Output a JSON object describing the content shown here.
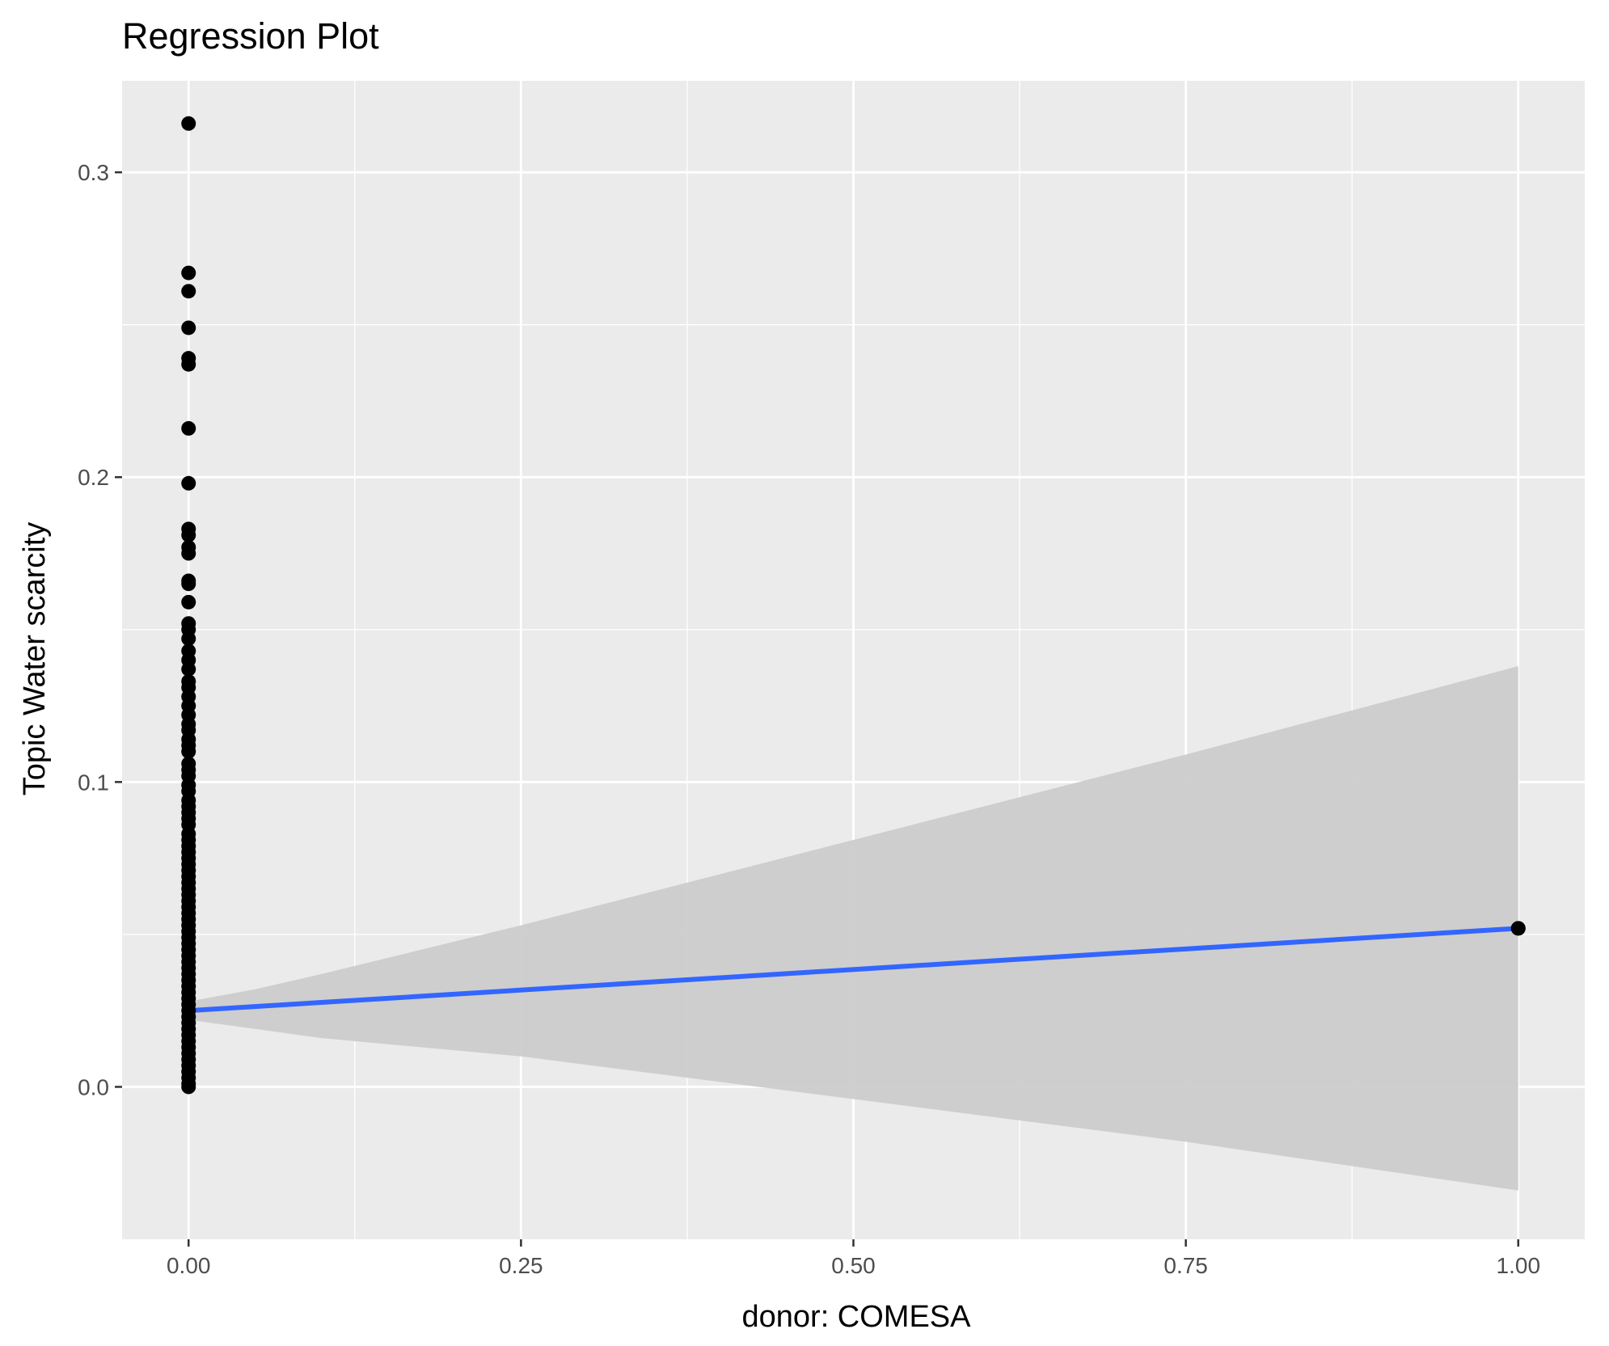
{
  "chart_data": {
    "type": "scatter",
    "title": "Regression Plot",
    "xlabel": "donor: COMESA",
    "ylabel": "Topic Water scarcity",
    "xlim": [
      -0.05,
      1.05
    ],
    "ylim": [
      -0.05,
      0.33
    ],
    "x_ticks": [
      {
        "value": 0.0,
        "label": "0.00"
      },
      {
        "value": 0.25,
        "label": "0.25"
      },
      {
        "value": 0.5,
        "label": "0.50"
      },
      {
        "value": 0.75,
        "label": "0.75"
      },
      {
        "value": 1.0,
        "label": "1.00"
      }
    ],
    "y_ticks": [
      {
        "value": 0.0,
        "label": "0.0"
      },
      {
        "value": 0.1,
        "label": "0.1"
      },
      {
        "value": 0.2,
        "label": "0.2"
      },
      {
        "value": 0.3,
        "label": "0.3"
      }
    ],
    "grid": true,
    "legend": "none",
    "points": [
      {
        "x": 0,
        "y": 0.316
      },
      {
        "x": 0,
        "y": 0.267
      },
      {
        "x": 0,
        "y": 0.261
      },
      {
        "x": 0,
        "y": 0.249
      },
      {
        "x": 0,
        "y": 0.239
      },
      {
        "x": 0,
        "y": 0.237
      },
      {
        "x": 0,
        "y": 0.216
      },
      {
        "x": 0,
        "y": 0.198
      },
      {
        "x": 0,
        "y": 0.183
      },
      {
        "x": 0,
        "y": 0.181
      },
      {
        "x": 0,
        "y": 0.177
      },
      {
        "x": 0,
        "y": 0.175
      },
      {
        "x": 0,
        "y": 0.166
      },
      {
        "x": 0,
        "y": 0.165
      },
      {
        "x": 0,
        "y": 0.159
      },
      {
        "x": 0,
        "y": 0.152
      },
      {
        "x": 0,
        "y": 0.15
      },
      {
        "x": 0,
        "y": 0.147
      },
      {
        "x": 0,
        "y": 0.143
      },
      {
        "x": 0,
        "y": 0.14
      },
      {
        "x": 0,
        "y": 0.137
      },
      {
        "x": 0,
        "y": 0.133
      },
      {
        "x": 0,
        "y": 0.131
      },
      {
        "x": 0,
        "y": 0.128
      },
      {
        "x": 0,
        "y": 0.125
      },
      {
        "x": 0,
        "y": 0.122
      },
      {
        "x": 0,
        "y": 0.119
      },
      {
        "x": 0,
        "y": 0.117
      },
      {
        "x": 0,
        "y": 0.114
      },
      {
        "x": 0,
        "y": 0.112
      },
      {
        "x": 0,
        "y": 0.11
      },
      {
        "x": 0,
        "y": 0.106
      },
      {
        "x": 0,
        "y": 0.104
      },
      {
        "x": 0,
        "y": 0.102
      },
      {
        "x": 0,
        "y": 0.099
      },
      {
        "x": 0,
        "y": 0.097
      },
      {
        "x": 0,
        "y": 0.094
      },
      {
        "x": 0,
        "y": 0.092
      },
      {
        "x": 0,
        "y": 0.09
      },
      {
        "x": 0,
        "y": 0.088
      },
      {
        "x": 0,
        "y": 0.086
      },
      {
        "x": 0,
        "y": 0.083
      },
      {
        "x": 0,
        "y": 0.081
      },
      {
        "x": 0,
        "y": 0.079
      },
      {
        "x": 0,
        "y": 0.077
      },
      {
        "x": 0,
        "y": 0.075
      },
      {
        "x": 0,
        "y": 0.073
      },
      {
        "x": 0,
        "y": 0.071
      },
      {
        "x": 0,
        "y": 0.069
      },
      {
        "x": 0,
        "y": 0.067
      },
      {
        "x": 0,
        "y": 0.065
      },
      {
        "x": 0,
        "y": 0.063
      },
      {
        "x": 0,
        "y": 0.061
      },
      {
        "x": 0,
        "y": 0.059
      },
      {
        "x": 0,
        "y": 0.057
      },
      {
        "x": 0,
        "y": 0.055
      },
      {
        "x": 0,
        "y": 0.053
      },
      {
        "x": 0,
        "y": 0.051
      },
      {
        "x": 0,
        "y": 0.049
      },
      {
        "x": 0,
        "y": 0.047
      },
      {
        "x": 0,
        "y": 0.045
      },
      {
        "x": 0,
        "y": 0.043
      },
      {
        "x": 0,
        "y": 0.041
      },
      {
        "x": 0,
        "y": 0.039
      },
      {
        "x": 0,
        "y": 0.037
      },
      {
        "x": 0,
        "y": 0.035
      },
      {
        "x": 0,
        "y": 0.033
      },
      {
        "x": 0,
        "y": 0.031
      },
      {
        "x": 0,
        "y": 0.029
      },
      {
        "x": 0,
        "y": 0.027
      },
      {
        "x": 0,
        "y": 0.025
      },
      {
        "x": 0,
        "y": 0.023
      },
      {
        "x": 0,
        "y": 0.021
      },
      {
        "x": 0,
        "y": 0.019
      },
      {
        "x": 0,
        "y": 0.017
      },
      {
        "x": 0,
        "y": 0.015
      },
      {
        "x": 0,
        "y": 0.013
      },
      {
        "x": 0,
        "y": 0.011
      },
      {
        "x": 0,
        "y": 0.009
      },
      {
        "x": 0,
        "y": 0.007
      },
      {
        "x": 0,
        "y": 0.005
      },
      {
        "x": 0,
        "y": 0.003
      },
      {
        "x": 0,
        "y": 0.001
      },
      {
        "x": 0,
        "y": 0.0
      },
      {
        "x": 1,
        "y": 0.052
      }
    ],
    "regression_line": {
      "color": "#3366ff",
      "x": [
        0,
        1
      ],
      "y": [
        0.025,
        0.052
      ]
    },
    "confidence_band": {
      "color": "#cccccc",
      "x": [
        0,
        0.05,
        0.1,
        0.25,
        0.5,
        0.75,
        1.0
      ],
      "lower": [
        0.022,
        0.019,
        0.016,
        0.01,
        -0.004,
        -0.018,
        -0.034
      ],
      "upper": [
        0.028,
        0.032,
        0.037,
        0.053,
        0.081,
        0.109,
        0.138
      ]
    },
    "colors": {
      "panel_background": "#ebebeb",
      "grid_major": "#ffffff",
      "point": "#000000"
    }
  }
}
